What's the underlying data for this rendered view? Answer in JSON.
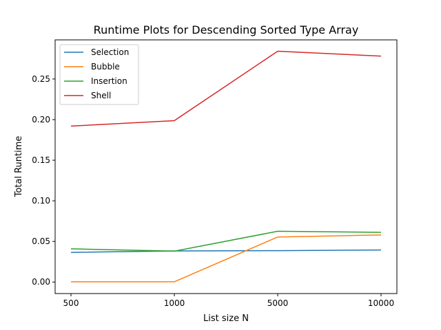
{
  "chart_data": {
    "type": "line",
    "title": "Runtime Plots for Descending Sorted Type Array",
    "xlabel": "List size N",
    "ylabel": "Total Runtime",
    "categories": [
      "500",
      "1000",
      "5000",
      "10000"
    ],
    "ylim": [
      -0.0142,
      0.2982
    ],
    "yticks": [
      0.0,
      0.05,
      0.1,
      0.15,
      0.2,
      0.25
    ],
    "ytick_labels": [
      "0.00",
      "0.05",
      "0.10",
      "0.15",
      "0.20",
      "0.25"
    ],
    "grid": false,
    "legend_position": "upper-left",
    "series": [
      {
        "name": "Selection",
        "color": "#1f77b4",
        "values": [
          0.0365,
          0.0383,
          0.0386,
          0.0395
        ]
      },
      {
        "name": "Bubble",
        "color": "#ff7f0e",
        "values": [
          0.0003,
          0.0003,
          0.0555,
          0.058
        ]
      },
      {
        "name": "Insertion",
        "color": "#2ca02c",
        "values": [
          0.0409,
          0.038,
          0.0625,
          0.0612
        ]
      },
      {
        "name": "Shell",
        "color": "#d62728",
        "values": [
          0.192,
          0.1987,
          0.2842,
          0.2782
        ]
      }
    ]
  }
}
